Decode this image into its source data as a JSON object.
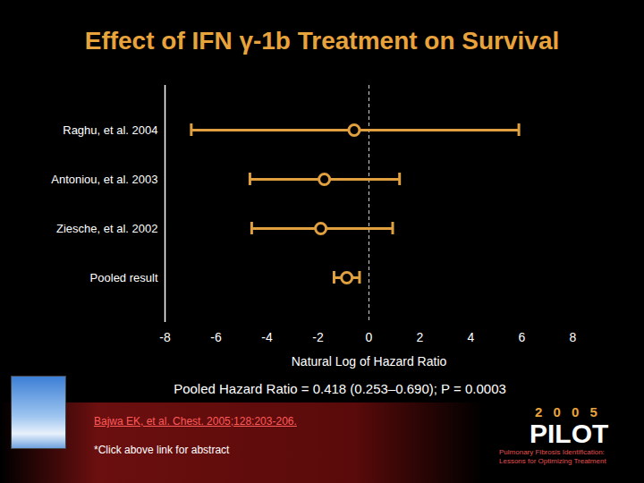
{
  "chart_data": {
    "type": "forest",
    "title": "Effect of IFN γ-1b Treatment on Survival",
    "categories": [
      "Raghu, et al. 2004",
      "Antoniou, et al. 2003",
      "Ziesche, et al. 2002",
      "Pooled result"
    ],
    "values": [
      -0.58,
      -1.75,
      -1.89,
      -0.87
    ],
    "error_low": [
      -6.97,
      -4.67,
      -4.6,
      -1.37
    ],
    "error_high": [
      5.88,
      1.2,
      0.93,
      -0.37
    ],
    "color": "#e0a040",
    "marker": "open_circle",
    "xlabel": "Natural Log of Hazard Ratio",
    "xlim": [
      -8,
      8
    ],
    "xticks": [
      -8,
      -6,
      -4,
      -2,
      0,
      2,
      4,
      6,
      8
    ],
    "reference_line": 0,
    "grid": false,
    "annotations": {
      "summary": "Pooled Hazard Ratio = 0.418 (0.253–0.690); P = 0.0003",
      "citation": "Bajwa EK, et al. Chest. 2005;128:203-206.",
      "note": "*Click above link for abstract",
      "logo_year": "2 0 0 5",
      "logo_name": "PILOT",
      "logo_tagline": "Pulmonary Fibrosis Identification: Lessons for Optimizing Treatment"
    }
  }
}
